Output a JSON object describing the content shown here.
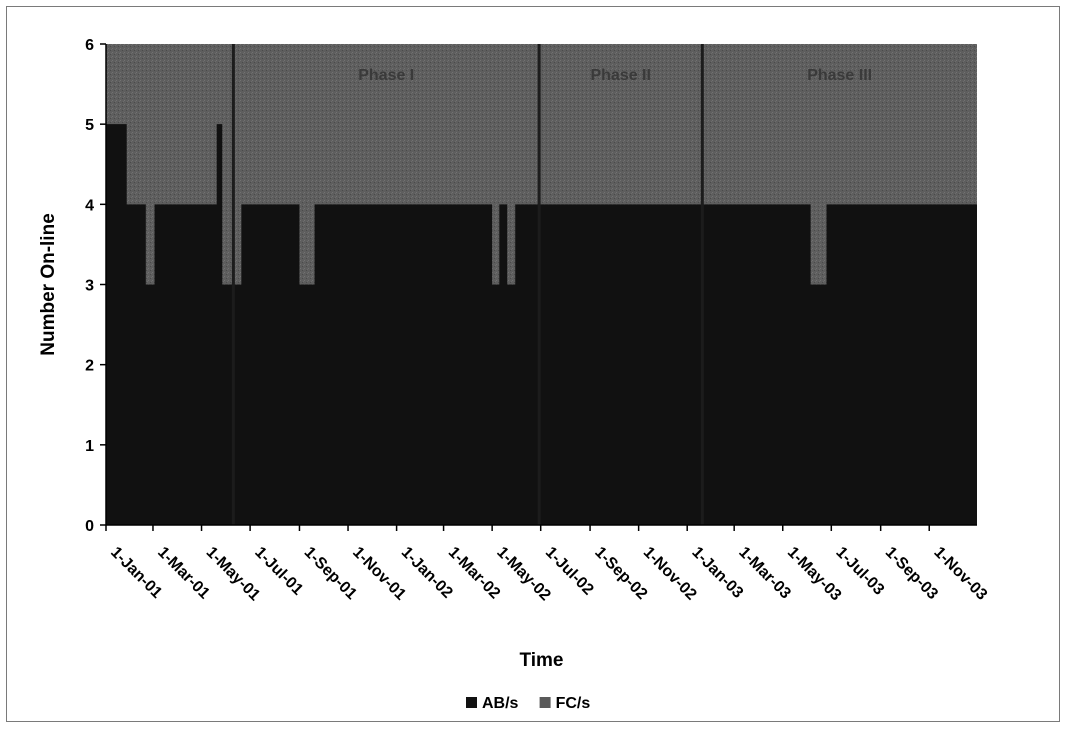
{
  "chart_data": {
    "type": "area",
    "title": "",
    "xlabel": "Time",
    "ylabel": "Number On-line",
    "ylim": [
      0,
      6
    ],
    "yticks": [
      "0",
      "1",
      "2",
      "3",
      "4",
      "5",
      "6"
    ],
    "xlim": [
      "2001-01-01",
      "2003-12-31"
    ],
    "x_tick_labels": [
      "1-Jan-01",
      "1-Mar-01",
      "1-May-01",
      "1-Jul-01",
      "1-Sep-01",
      "1-Nov-01",
      "1-Jan-02",
      "1-Mar-02",
      "1-May-02",
      "1-Jul-02",
      "1-Sep-02",
      "1-Nov-02",
      "1-Jan-03",
      "1-Mar-03",
      "1-May-03",
      "1-Jul-03",
      "1-Sep-03",
      "1-Nov-03"
    ],
    "x_tick_dates": [
      "2001-01-01",
      "2001-03-01",
      "2001-05-01",
      "2001-07-01",
      "2001-09-01",
      "2001-11-01",
      "2002-01-01",
      "2002-03-01",
      "2002-05-01",
      "2002-07-01",
      "2002-09-01",
      "2002-11-01",
      "2003-01-01",
      "2003-03-01",
      "2003-05-01",
      "2003-07-01",
      "2003-09-01",
      "2003-11-01"
    ],
    "grid": false,
    "legend_position": "bottom",
    "series": [
      {
        "name": "AB/s",
        "color": "#111111",
        "points": [
          {
            "x": "2001-01-01",
            "y": 5
          },
          {
            "x": "2001-01-27",
            "y": 4
          },
          {
            "x": "2001-02-20",
            "y": 3
          },
          {
            "x": "2001-03-03",
            "y": 4
          },
          {
            "x": "2001-05-20",
            "y": 5
          },
          {
            "x": "2001-05-27",
            "y": 3
          },
          {
            "x": "2001-06-20",
            "y": 4
          },
          {
            "x": "2001-09-01",
            "y": 3
          },
          {
            "x": "2001-09-20",
            "y": 4
          },
          {
            "x": "2002-05-01",
            "y": 3
          },
          {
            "x": "2002-05-10",
            "y": 4
          },
          {
            "x": "2002-05-20",
            "y": 3
          },
          {
            "x": "2002-05-30",
            "y": 4
          },
          {
            "x": "2003-06-05",
            "y": 3
          },
          {
            "x": "2003-06-25",
            "y": 4
          },
          {
            "x": "2003-12-31",
            "y": 4
          }
        ]
      },
      {
        "name": "FC/s",
        "color": "#5a5a5a",
        "points": [
          {
            "x": "2001-01-01",
            "y": 6
          },
          {
            "x": "2003-12-31",
            "y": 6
          }
        ]
      }
    ],
    "phase_boundaries": [
      "2001-06-10",
      "2002-06-29",
      "2003-01-20"
    ],
    "annotations": [
      "Phase I",
      "Phase II",
      "Phase III"
    ]
  }
}
